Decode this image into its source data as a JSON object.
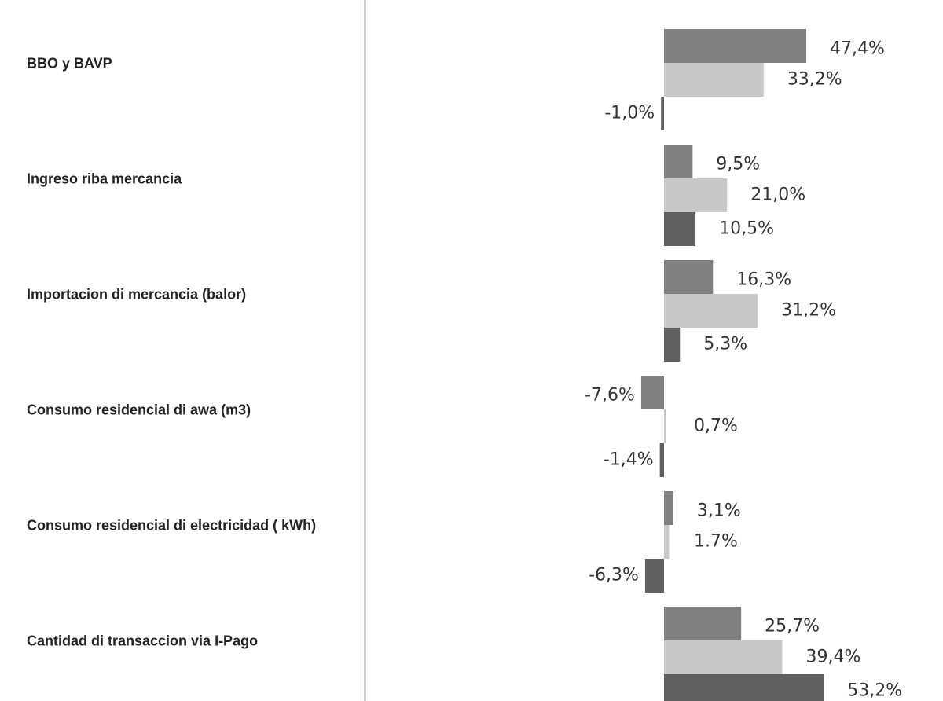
{
  "chart_data": {
    "type": "bar",
    "orientation": "horizontal",
    "categories": [
      "BBO y BAVP",
      "Ingreso riba mercancia",
      "Importacion di mercancia (balor)",
      "Consumo residencial di awa (m3)",
      "Consumo residencial di electricidad ( kWh)",
      "Cantidad di transaccion via I-Pago"
    ],
    "series": [
      {
        "color": "#808080",
        "values": [
          47.4,
          9.5,
          16.3,
          -7.6,
          3.1,
          25.7
        ],
        "value_labels": [
          "47,4%",
          "9,5%",
          "16,3%",
          "-7,6%",
          "3,1%",
          "25,7%"
        ]
      },
      {
        "color": "#c8c8c8",
        "values": [
          33.2,
          21.0,
          31.2,
          0.7,
          1.7,
          39.4
        ],
        "value_labels": [
          "33,2%",
          "21,0%",
          "31,2%",
          "0,7%",
          "1.7%",
          "39,4%"
        ]
      },
      {
        "color": "#606060",
        "values": [
          -1.0,
          10.5,
          5.3,
          -1.4,
          -6.3,
          53.2
        ],
        "value_labels": [
          "-1,0%",
          "10,5%",
          "5,3%",
          "-1,4%",
          "-6,3%",
          "53,2%"
        ]
      }
    ]
  }
}
